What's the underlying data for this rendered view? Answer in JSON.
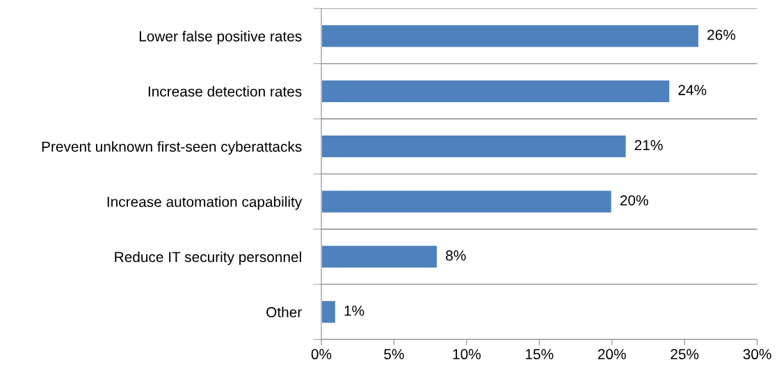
{
  "chart_data": {
    "type": "bar",
    "orientation": "horizontal",
    "categories": [
      "Lower false positive rates",
      "Increase detection rates",
      "Prevent unknown first-seen cyberattacks",
      "Increase automation capability",
      "Reduce IT security personnel",
      "Other"
    ],
    "values": [
      26,
      24,
      21,
      20,
      8,
      1
    ],
    "value_labels": [
      "26%",
      "24%",
      "21%",
      "20%",
      "8%",
      "1%"
    ],
    "color": "#4f81bd",
    "xlim": [
      0,
      30
    ],
    "xticks": [
      {
        "value": 0,
        "label": "0%"
      },
      {
        "value": 5,
        "label": "5%"
      },
      {
        "value": 10,
        "label": "10%"
      },
      {
        "value": 15,
        "label": "15%"
      },
      {
        "value": 20,
        "label": "20%"
      },
      {
        "value": 25,
        "label": "25%"
      },
      {
        "value": 30,
        "label": "30%"
      }
    ],
    "grid": "y"
  }
}
